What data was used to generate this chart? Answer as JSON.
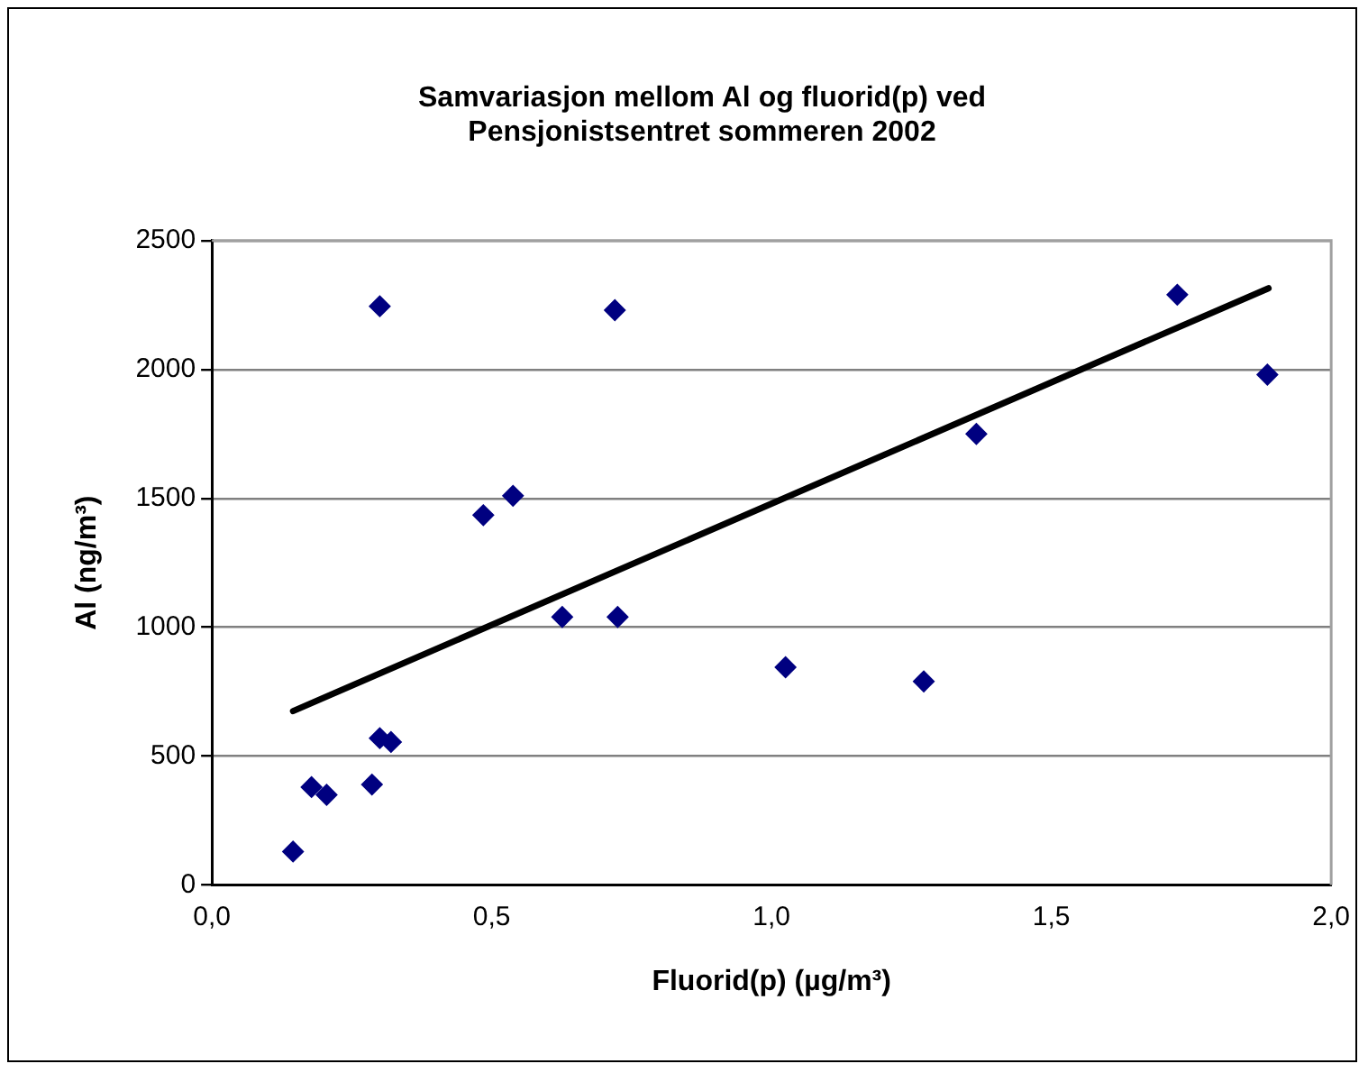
{
  "chart_data": {
    "type": "scatter",
    "title": "Samvariasjon mellom Al og fluorid(p) ved Pensjonistsentret sommeren 2002",
    "xlabel": "Fluorid(p) (µg/m³)",
    "ylabel": "Al (ng/m³)",
    "marker": "diamond",
    "grid": "y",
    "legend": false,
    "xlim": [
      0,
      2
    ],
    "xticks": [
      {
        "value": 0,
        "label": "0,0"
      },
      {
        "value": 0.5,
        "label": "0,5"
      },
      {
        "value": 1,
        "label": "1,0"
      },
      {
        "value": 1.5,
        "label": "1,5"
      },
      {
        "value": 2,
        "label": "2,0"
      }
    ],
    "ylim": [
      0,
      2500
    ],
    "yticks": [
      0,
      500,
      1000,
      1500,
      2000,
      2500
    ],
    "series": [
      {
        "color": "#000080",
        "x": [
          0.145,
          0.178,
          0.205,
          0.286,
          0.3,
          0.32,
          0.3,
          0.485,
          0.538,
          0.626,
          0.725,
          0.72,
          1.025,
          1.272,
          1.366,
          1.725,
          1.886
        ],
        "values": [
          130,
          380,
          350,
          390,
          570,
          555,
          2245,
          1435,
          1510,
          1040,
          1040,
          2230,
          845,
          790,
          1750,
          2290,
          1980
        ]
      },
      {
        "type": "line",
        "color": "#000000",
        "x": [
          0.145,
          1.888
        ],
        "values": [
          675,
          2315
        ],
        "marker": "none",
        "line_style": "solid"
      }
    ]
  }
}
